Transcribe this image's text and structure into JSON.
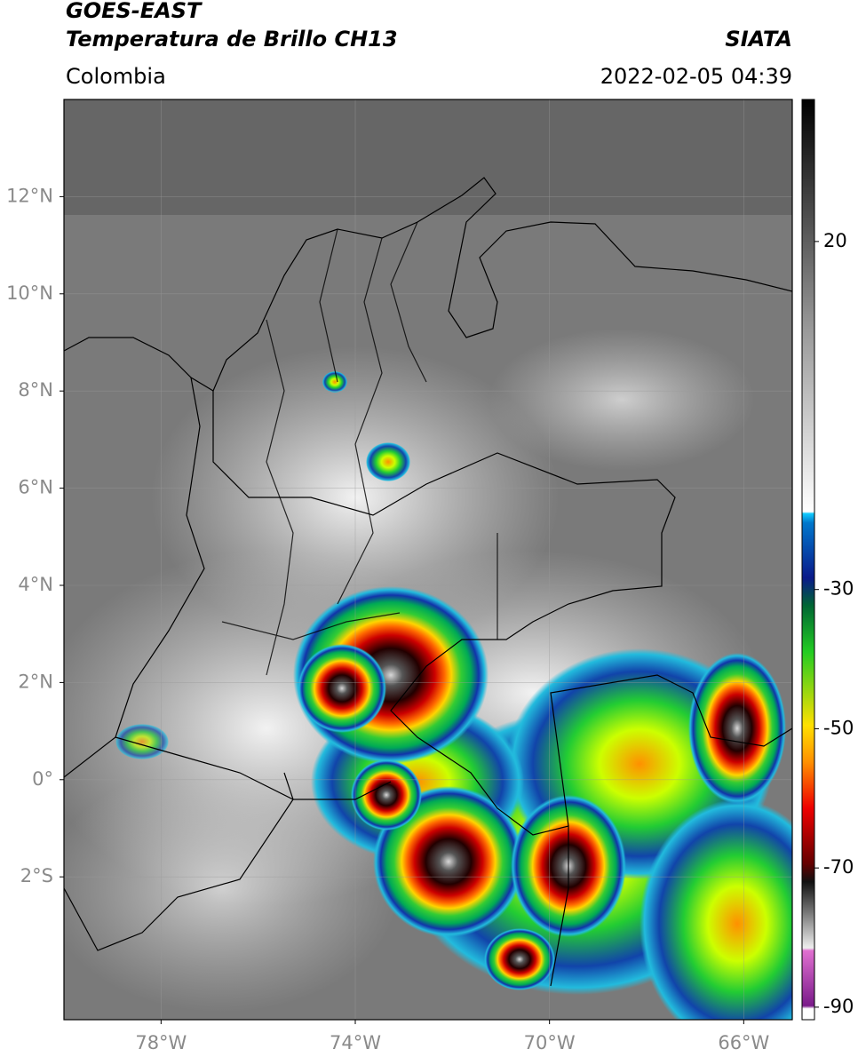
{
  "header": {
    "title": "GOES-EAST",
    "subtitle": "Temperatura de Brillo CH13",
    "source": "SIATA",
    "region": "Colombia",
    "datetime": "2022-02-05 04:39"
  },
  "map": {
    "xlim": [
      -80,
      -65
    ],
    "ylim": [
      -4.94,
      14
    ],
    "xticks": [
      {
        "value": -78,
        "label": "78°W"
      },
      {
        "value": -74,
        "label": "74°W"
      },
      {
        "value": -70,
        "label": "70°W"
      },
      {
        "value": -66,
        "label": "66°W"
      }
    ],
    "yticks": [
      {
        "value": 12,
        "label": "12°N"
      },
      {
        "value": 10,
        "label": "10°N"
      },
      {
        "value": 8,
        "label": "8°N"
      },
      {
        "value": 6,
        "label": "6°N"
      },
      {
        "value": 4,
        "label": "4°N"
      },
      {
        "value": 2,
        "label": "2°N"
      },
      {
        "value": 0,
        "label": "0°"
      },
      {
        "value": -2,
        "label": "2°S"
      }
    ]
  },
  "colorbar": {
    "lim": [
      -91.8,
      40.4
    ],
    "ticks": [
      20,
      -30,
      -50,
      -70,
      -90
    ]
  }
}
